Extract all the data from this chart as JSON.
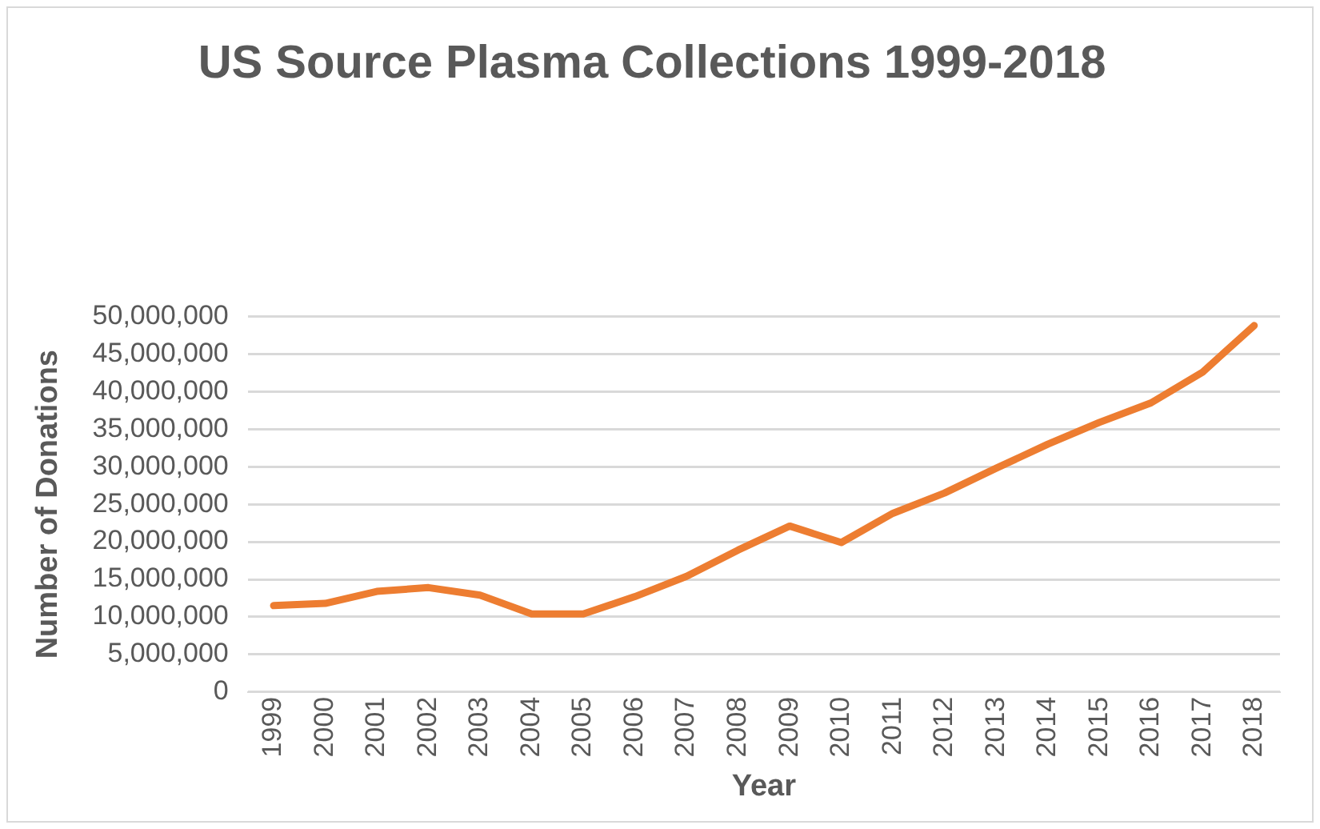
{
  "chart_data": {
    "type": "line",
    "title": "US Source Plasma Collections 1999-2018",
    "xlabel": "Year",
    "ylabel": "Number of Donations",
    "categories": [
      "1999",
      "2000",
      "2001",
      "2002",
      "2003",
      "2004",
      "2005",
      "2006",
      "2007",
      "2008",
      "2009",
      "2010",
      "2011",
      "2012",
      "2013",
      "2014",
      "2015",
      "2016",
      "2017",
      "2018"
    ],
    "series": [
      {
        "color": "#ed7d31",
        "values": [
          11500000,
          11800000,
          13400000,
          13900000,
          12900000,
          10400000,
          10400000,
          12700000,
          15400000,
          18900000,
          22100000,
          19900000,
          23800000,
          26500000,
          29800000,
          33000000,
          35900000,
          38500000,
          42600000,
          48800000
        ]
      }
    ],
    "ylim": [
      0,
      50000000
    ],
    "yticks": [
      0,
      {
        "value": 5000000,
        "label": "5,000,000"
      },
      {
        "value": 10000000,
        "label": "10,000,000"
      },
      {
        "value": 15000000,
        "label": "15,000,000"
      },
      {
        "value": 20000000,
        "label": "20,000,000"
      },
      {
        "value": 25000000,
        "label": "25,000,000"
      },
      {
        "value": 30000000,
        "label": "30,000,000"
      },
      {
        "value": 35000000,
        "label": "35,000,000"
      },
      {
        "value": 40000000,
        "label": "40,000,000"
      },
      {
        "value": 45000000,
        "label": "45,000,000"
      },
      {
        "value": 50000000,
        "label": "50,000,000"
      }
    ],
    "grid": "y",
    "legend": false,
    "marker": "none",
    "line_style": "solid"
  }
}
